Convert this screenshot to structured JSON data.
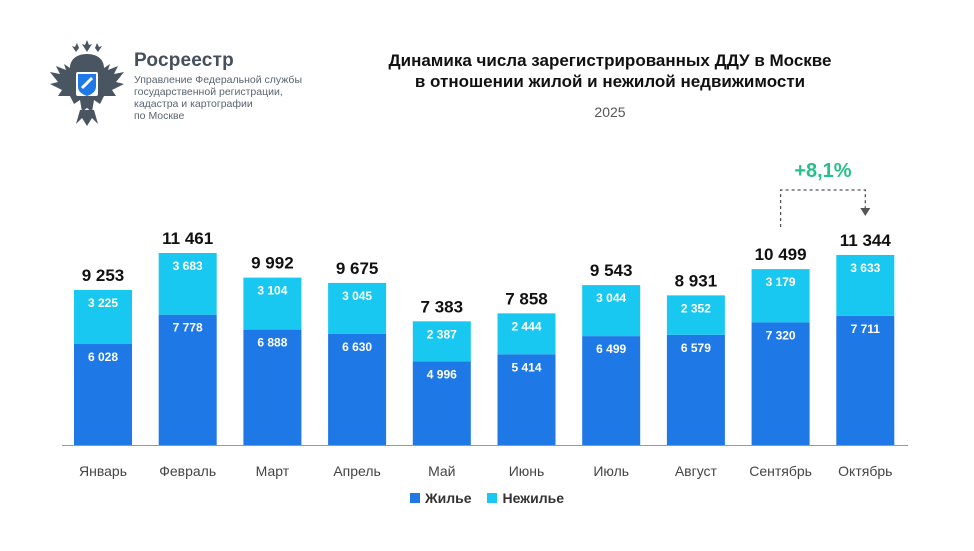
{
  "logo": {
    "name": "Росреестр",
    "subtitle_lines": [
      "Управление Федеральной службы",
      "государственной регистрации,",
      "кадастра и картографии",
      "по Москве"
    ]
  },
  "colors": {
    "residential": "#1e78e6",
    "nonresidential": "#19c8f0",
    "growth": "#27c08a",
    "axis": "#999999"
  },
  "chart_data": {
    "type": "bar",
    "stacked": true,
    "title_lines": [
      "Динамика числа зарегистрированных ДДУ в Москве",
      "в отношении жилой и нежилой недвижимости"
    ],
    "subtitle": "2025",
    "categories": [
      "Январь",
      "Февраль",
      "Март",
      "Апрель",
      "Май",
      "Июнь",
      "Июль",
      "Август",
      "Сентябрь",
      "Октябрь"
    ],
    "series": [
      {
        "name": "Жилье",
        "values": [
          6028,
          7778,
          6888,
          6630,
          4996,
          5414,
          6499,
          6579,
          7320,
          7711
        ],
        "labels": [
          "6 028",
          "7 778",
          "6 888",
          "6 630",
          "4 996",
          "5 414",
          "6 499",
          "6 579",
          "7 320",
          "7 711"
        ]
      },
      {
        "name": "Нежилье",
        "values": [
          3225,
          3683,
          3104,
          3045,
          2387,
          2444,
          3044,
          2352,
          3179,
          3633
        ],
        "labels": [
          "3 225",
          "3 683",
          "3 104",
          "3 045",
          "2 387",
          "2 444",
          "3 044",
          "2 352",
          "3 179",
          "3 633"
        ]
      }
    ],
    "totals": [
      9253,
      11461,
      9992,
      9675,
      7383,
      7858,
      9543,
      8931,
      10499,
      11344
    ],
    "total_labels": [
      "9 253",
      "11 461",
      "9 992",
      "9 675",
      "7 383",
      "7 858",
      "9 543",
      "8 931",
      "10 499",
      "11 344"
    ],
    "ylim": [
      0,
      11461
    ],
    "annotation": {
      "text": "+8,1%",
      "from": "Сентябрь",
      "to": "Октябрь"
    },
    "legend": [
      "Жилье",
      "Нежилье"
    ]
  }
}
